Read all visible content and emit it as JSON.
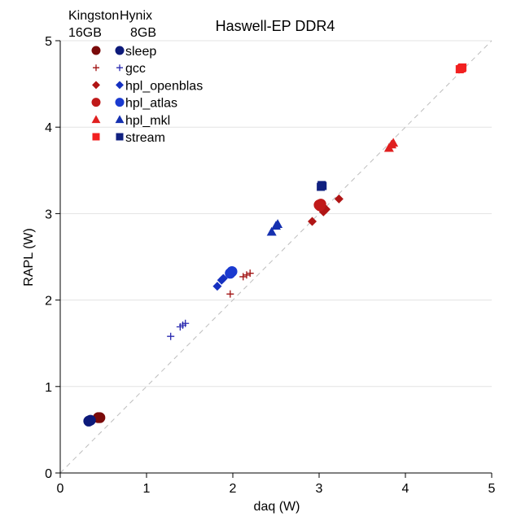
{
  "chart_data": {
    "type": "scatter",
    "title": "Haswell-EP DDR4",
    "xlabel": "daq (W)",
    "ylabel": "RAPL (W)",
    "xlim": [
      0,
      5
    ],
    "ylim": [
      0,
      5
    ],
    "xticks": [
      "0",
      "1",
      "2",
      "3",
      "4",
      "5"
    ],
    "yticks": [
      "0",
      "1",
      "2",
      "3",
      "4",
      "5"
    ],
    "grid": "horizontal",
    "reference_line": "y = x (dashed)",
    "legend": {
      "placement": "top-left",
      "column_headers": [
        {
          "line1": "Kingston",
          "line2": "16GB"
        },
        {
          "line1": "Hynix",
          "line2": "8GB"
        }
      ],
      "entries": [
        {
          "label": "sleep",
          "marker": "circle",
          "colors": [
            "#7a0a0a",
            "#0d1a7a"
          ]
        },
        {
          "label": "gcc",
          "marker": "plus",
          "colors": [
            "#a01010",
            "#2a2ab0"
          ]
        },
        {
          "label": "hpl_openblas",
          "marker": "diamond",
          "colors": [
            "#b01515",
            "#1530c0"
          ]
        },
        {
          "label": "hpl_atlas",
          "marker": "circle",
          "colors": [
            "#c01a1a",
            "#1a3ad0"
          ]
        },
        {
          "label": "hpl_mkl",
          "marker": "triangle",
          "colors": [
            "#e01f1f",
            "#1530b0"
          ]
        },
        {
          "label": "stream",
          "marker": "square",
          "colors": [
            "#f22020",
            "#102080"
          ]
        }
      ]
    },
    "series": [
      {
        "name": "sleep",
        "memory": "16GB",
        "marker": "circle",
        "color": "#7a0a0a",
        "points": [
          [
            0.44,
            0.64
          ],
          [
            0.46,
            0.64
          ]
        ]
      },
      {
        "name": "sleep",
        "memory": "8GB",
        "marker": "circle",
        "color": "#0d1a7a",
        "points": [
          [
            0.33,
            0.6
          ],
          [
            0.35,
            0.61
          ]
        ]
      },
      {
        "name": "gcc",
        "memory": "16GB",
        "marker": "plus",
        "color": "#a01010",
        "points": [
          [
            1.97,
            2.07
          ],
          [
            2.12,
            2.27
          ],
          [
            2.16,
            2.29
          ],
          [
            2.2,
            2.31
          ]
        ]
      },
      {
        "name": "gcc",
        "memory": "8GB",
        "marker": "plus",
        "color": "#2a2ab0",
        "points": [
          [
            1.28,
            1.58
          ],
          [
            1.39,
            1.69
          ],
          [
            1.42,
            1.71
          ],
          [
            1.45,
            1.73
          ]
        ]
      },
      {
        "name": "hpl_openblas",
        "memory": "16GB",
        "marker": "diamond",
        "color": "#b01515",
        "points": [
          [
            2.92,
            2.91
          ],
          [
            3.05,
            3.02
          ],
          [
            3.08,
            3.05
          ],
          [
            3.23,
            3.17
          ]
        ]
      },
      {
        "name": "hpl_openblas",
        "memory": "8GB",
        "marker": "diamond",
        "color": "#1530c0",
        "points": [
          [
            1.82,
            2.16
          ],
          [
            1.87,
            2.23
          ],
          [
            1.89,
            2.25
          ]
        ]
      },
      {
        "name": "hpl_atlas",
        "memory": "16GB",
        "marker": "circle",
        "color": "#c01a1a",
        "points": [
          [
            3.0,
            3.1
          ],
          [
            3.02,
            3.11
          ],
          [
            3.01,
            3.09
          ]
        ]
      },
      {
        "name": "hpl_atlas",
        "memory": "8GB",
        "marker": "circle",
        "color": "#1a3ad0",
        "points": [
          [
            1.97,
            2.31
          ],
          [
            1.99,
            2.33
          ]
        ]
      },
      {
        "name": "hpl_mkl",
        "memory": "16GB",
        "marker": "triangle",
        "color": "#e01f1f",
        "points": [
          [
            3.81,
            3.76
          ],
          [
            3.84,
            3.8
          ],
          [
            3.86,
            3.82
          ]
        ]
      },
      {
        "name": "hpl_mkl",
        "memory": "8GB",
        "marker": "triangle",
        "color": "#1530b0",
        "points": [
          [
            2.45,
            2.79
          ],
          [
            2.5,
            2.86
          ],
          [
            2.52,
            2.88
          ]
        ]
      },
      {
        "name": "stream",
        "memory": "16GB",
        "marker": "square",
        "color": "#f22020",
        "points": [
          [
            4.63,
            4.67
          ],
          [
            4.65,
            4.68
          ],
          [
            4.66,
            4.69
          ]
        ]
      },
      {
        "name": "stream",
        "memory": "8GB",
        "marker": "square",
        "color": "#102080",
        "points": [
          [
            3.02,
            3.31
          ],
          [
            3.03,
            3.33
          ],
          [
            3.04,
            3.32
          ]
        ]
      }
    ]
  }
}
